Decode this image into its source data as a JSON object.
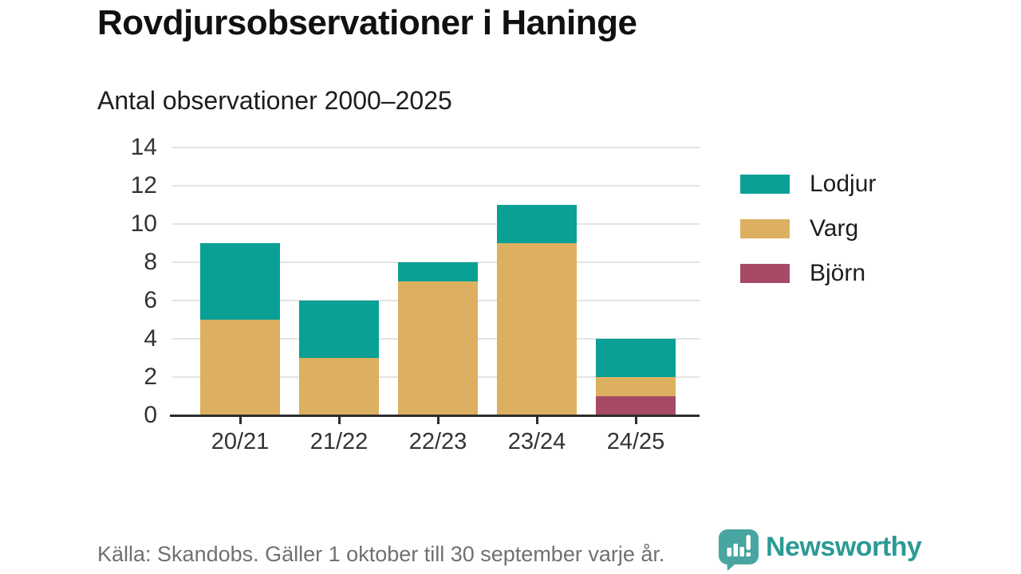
{
  "header": {
    "title": "Rovdjursobservationer i Haninge",
    "subtitle": "Antal observationer 2000–2025"
  },
  "chart_data": {
    "type": "bar",
    "stacked": true,
    "title": "Rovdjursobservationer i Haninge",
    "subtitle": "Antal observationer 2000–2025",
    "categories": [
      "20/21",
      "21/22",
      "22/23",
      "23/24",
      "24/25"
    ],
    "series": [
      {
        "name": "Lodjur",
        "color": "#0aa096",
        "values": [
          4,
          3,
          1,
          2,
          2
        ]
      },
      {
        "name": "Varg",
        "color": "#dcb060",
        "values": [
          5,
          3,
          7,
          9,
          1
        ]
      },
      {
        "name": "Björn",
        "color": "#a64a66",
        "values": [
          0,
          0,
          0,
          0,
          1
        ]
      }
    ],
    "stack_order_bottom_to_top": [
      "Björn",
      "Varg",
      "Lodjur"
    ],
    "totals": [
      9,
      6,
      8,
      11,
      4
    ],
    "xlabel": "",
    "ylabel": "",
    "ylim": [
      0,
      14
    ],
    "yticks": [
      0,
      2,
      4,
      6,
      8,
      10,
      12,
      14
    ],
    "grid": "horizontal",
    "legend_position": "right"
  },
  "legend": {
    "items": [
      {
        "label": "Lodjur",
        "color": "#0aa096"
      },
      {
        "label": "Varg",
        "color": "#dcb060"
      },
      {
        "label": "Björn",
        "color": "#a64a66"
      }
    ]
  },
  "footer": {
    "source": "Källa: Skandobs. Gäller 1 oktober till 30 september varje år.",
    "brand": "Newsworthy",
    "brand_color": "#2c9a94",
    "brand_icon": "bar-chart-speech-bubble-icon",
    "brand_icon_color": "#48a5a0"
  },
  "colors": {
    "grid_line": "#e3e3e3",
    "axis_line": "#2d2d2d",
    "tick_text": "#333333",
    "title_text": "#111111",
    "source_text": "#707070"
  }
}
